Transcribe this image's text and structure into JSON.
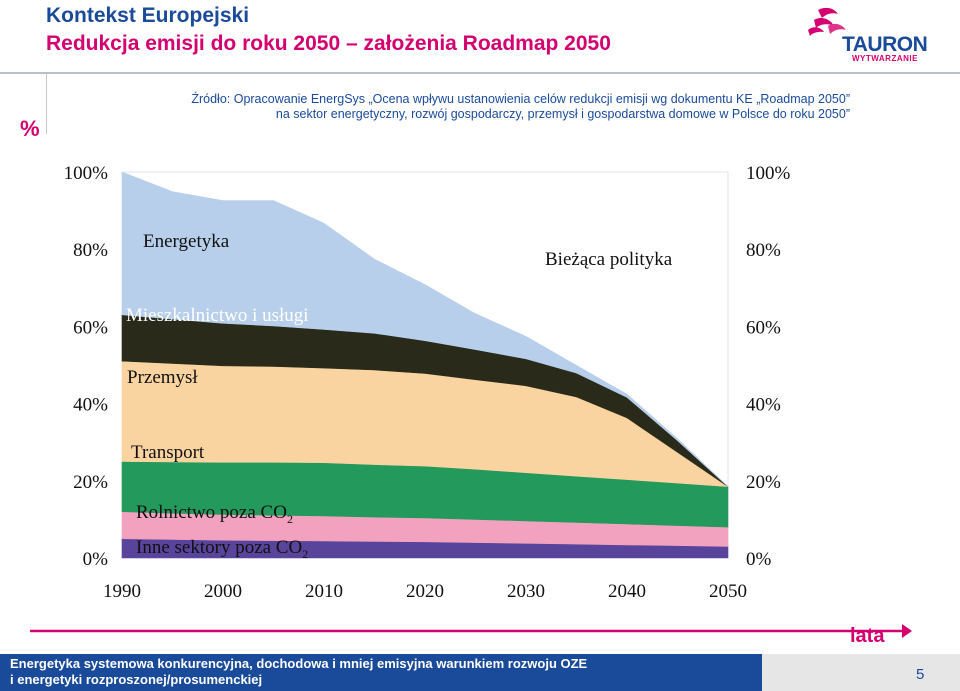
{
  "header": {
    "title_line1": "Kontekst Europejski",
    "title_line2": "Redukcja emisji do roku 2050 – założenia Roadmap 2050",
    "logo_name": "TAURON",
    "logo_sub": "WYTWARZANIE",
    "percent_symbol": "%"
  },
  "source": {
    "line1": "Źródło: Opracowanie EnergSys „Ocena wpływu ustanowienia celów redukcji emisji wg dokumentu KE „Roadmap 2050”",
    "line2": "na sektor energetyczny, rozwój gospodarczy, przemysł i gospodarstwa domowe w Polsce do roku 2050”"
  },
  "chart_data": {
    "type": "area",
    "x": [
      1990,
      1995,
      2000,
      2005,
      2010,
      2015,
      2020,
      2025,
      2030,
      2035,
      2040,
      2045,
      2050
    ],
    "y_tick_labels": [
      "0%",
      "20%",
      "40%",
      "60%",
      "80%",
      "100%"
    ],
    "x_tick_labels": [
      "1990",
      "2000",
      "2010",
      "2020",
      "2030",
      "2040",
      "2050"
    ],
    "ylim": [
      0,
      100
    ],
    "annotation_current_policy": "Bieżąca polityka",
    "axis_label_x": "lata",
    "series": [
      {
        "name": "Inne sektory poza CO2",
        "label_main": "Inne sektory poza CO",
        "label_sub": "2",
        "color": "#59449c",
        "values": [
          5.0,
          4.8,
          4.6,
          4.5,
          4.4,
          4.3,
          4.2,
          4.0,
          3.8,
          3.6,
          3.4,
          3.2,
          3.0
        ]
      },
      {
        "name": "Rolnictwo poza CO2",
        "label_main": "Rolnictwo poza CO",
        "label_sub": "2",
        "color": "#f2a2bf",
        "values": [
          7.0,
          6.8,
          6.7,
          6.6,
          6.5,
          6.3,
          6.2,
          6.0,
          5.8,
          5.6,
          5.4,
          5.2,
          5.0
        ]
      },
      {
        "name": "Transport",
        "label_main": "Transport",
        "color": "#23995c",
        "values": [
          13.0,
          13.3,
          13.5,
          13.7,
          13.8,
          13.6,
          13.4,
          13.0,
          12.5,
          12.0,
          11.5,
          11.0,
          10.5
        ]
      },
      {
        "name": "Przemysł",
        "label_main": "Przemysł",
        "color": "#f9d3a0",
        "values": [
          26.0,
          25.5,
          25.0,
          24.8,
          24.5,
          24.5,
          24.0,
          23.2,
          22.5,
          20.5,
          16.0,
          8.0,
          0.0
        ]
      },
      {
        "name": "Mieszkalnictwo i usługi",
        "label_main": "Mieszkalnictwo i usługi",
        "color": "#2a2a1a",
        "values": [
          12.0,
          11.5,
          11.0,
          10.5,
          10.0,
          9.5,
          8.5,
          7.8,
          7.0,
          6.2,
          5.3,
          3.0,
          0.0
        ]
      },
      {
        "name": "Energetyka",
        "label_main": "Energetyka",
        "color": "#b7cfea",
        "values": [
          37.0,
          33.0,
          31.8,
          32.5,
          27.5,
          19.2,
          14.5,
          9.3,
          5.8,
          2.0,
          0.8,
          0.5,
          0.0
        ]
      }
    ]
  },
  "footer": {
    "line1": "Energetyka systemowa konkurencyjna, dochodowa i mniej emisyjna warunkiem rozwoju OZE",
    "line2": "i energetyki rozproszonej/prosumenckiej",
    "page_number": "5"
  }
}
